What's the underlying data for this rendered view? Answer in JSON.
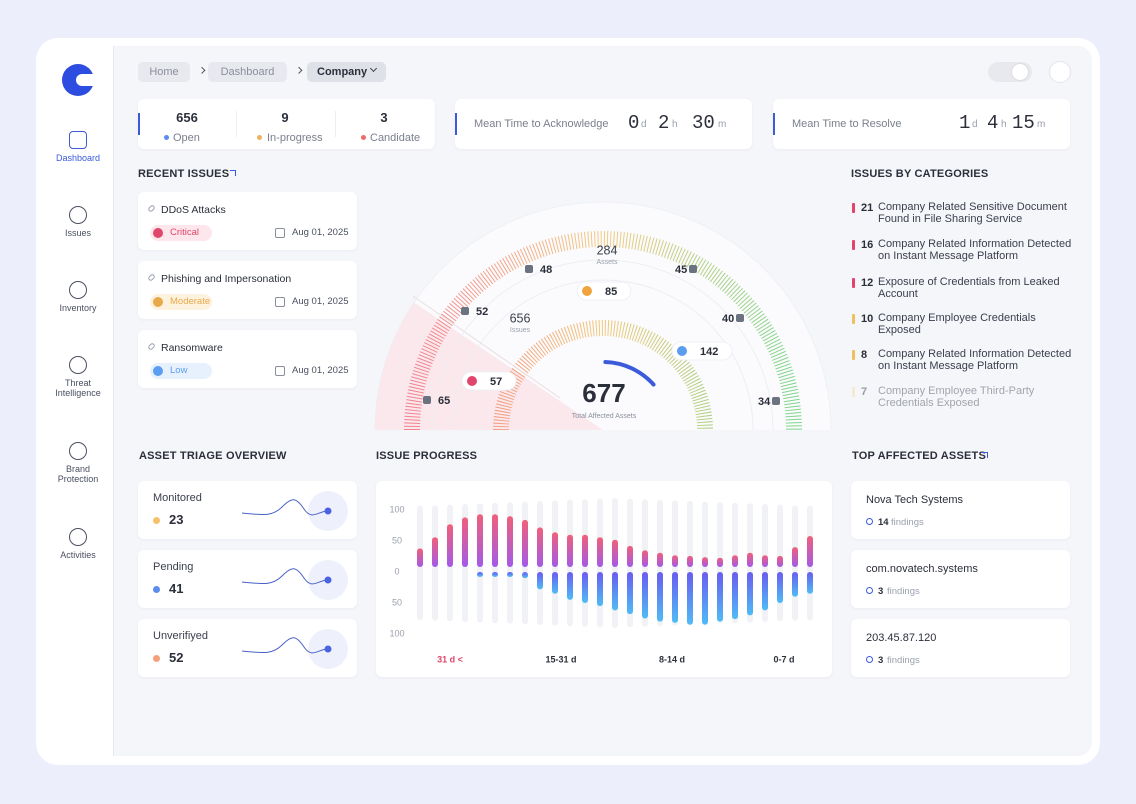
{
  "nav": {
    "items": [
      "Dashboard",
      "Issues",
      "Inventory",
      "Threat Intelligence",
      "Brand Protection",
      "Activities"
    ]
  },
  "breadcrumb": [
    "Home",
    "Dashboard",
    "Company"
  ],
  "status": [
    {
      "value": 656,
      "label": "Open",
      "color": "#5b8def"
    },
    {
      "value": 9,
      "label": "In-progress",
      "color": "#f0b060"
    },
    {
      "value": 3,
      "label": "Candidate",
      "color": "#ef6a6a"
    }
  ],
  "mtta": {
    "label": "Mean Time to Acknowledge",
    "parts": [
      {
        "value": 0,
        "unit": "d"
      },
      {
        "value": 2,
        "unit": "h"
      },
      {
        "value": 30,
        "unit": "m"
      }
    ]
  },
  "mttr": {
    "label": "Mean Time to Resolve",
    "parts": [
      {
        "value": 1,
        "unit": "d"
      },
      {
        "value": 4,
        "unit": "h"
      },
      {
        "value": 15,
        "unit": "m"
      }
    ]
  },
  "recent_issues": {
    "title": "RECENT ISSUES",
    "items": [
      {
        "name": "DDoS Attacks",
        "severity": "Critical",
        "date": "Aug 01, 2025"
      },
      {
        "name": "Phishing and Impersonation",
        "severity": "Moderate",
        "date": "Aug 01, 2025"
      },
      {
        "name": "Ransomware",
        "severity": "Low",
        "date": "Aug 01, 2025"
      }
    ]
  },
  "gauge": {
    "center": {
      "value": 677,
      "label": "Total Affected Assets"
    },
    "rings": [
      {
        "value": 284,
        "label": "Assets"
      },
      {
        "value": 656,
        "label": "Issues"
      }
    ],
    "points": [
      48,
      45,
      52,
      85,
      40,
      142,
      57,
      65,
      34
    ]
  },
  "categories": {
    "title": "ISSUES BY CATEGORIES",
    "items": [
      {
        "count": 21,
        "label": "Company Related Sensitive Document Found in File Sharing Service",
        "color": "#e0456b"
      },
      {
        "count": 16,
        "label": "Company Related Information Detected on Instant Message Platform",
        "color": "#e0456b"
      },
      {
        "count": 12,
        "label": "Exposure of Credentials from Leaked Account",
        "color": "#e0456b"
      },
      {
        "count": 10,
        "label": "Company Employee Credentials Exposed",
        "color": "#f0c060"
      },
      {
        "count": 8,
        "label": "Company Related Information Detected on Instant Message Platform",
        "color": "#f0c060"
      },
      {
        "count": 7,
        "label": "Company Employee Third-Party Credentials Exposed",
        "color": "#f5d9a0"
      }
    ]
  },
  "asset_triage": {
    "title": "ASSET TRIAGE OVERVIEW",
    "items": [
      {
        "label": "Monitored",
        "value": 23,
        "color": "#f5c26b"
      },
      {
        "label": "Pending",
        "value": 41,
        "color": "#5b8def"
      },
      {
        "label": "Unverifiyed",
        "value": 52,
        "color": "#f4a07a"
      }
    ]
  },
  "issue_progress": {
    "title": "ISSUE PROGRESS",
    "ylim": [
      0,
      100
    ],
    "yticks_top": [
      100,
      50,
      0
    ],
    "yticks_bottom": [
      50,
      100
    ],
    "x_labels": [
      "31 d <",
      "15-31 d",
      "8-14 d",
      "0-7 d"
    ],
    "top_values": [
      30,
      48,
      69,
      80,
      85,
      85,
      82,
      76,
      64,
      56,
      52,
      52,
      48,
      44,
      34,
      27,
      23,
      19,
      18,
      16,
      15,
      19,
      23,
      19,
      18,
      32,
      50
    ],
    "bottom_values": [
      null,
      null,
      null,
      null,
      8,
      8,
      8,
      10,
      28,
      35,
      45,
      50,
      55,
      62,
      68,
      75,
      80,
      82,
      85,
      85,
      80,
      76,
      70,
      62,
      50,
      40,
      35
    ]
  },
  "top_assets": {
    "title": "TOP AFFECTED ASSETS",
    "findings_label": "findings",
    "items": [
      {
        "name": "Nova Tech Systems",
        "findings": 14
      },
      {
        "name": "com.novatech.systems",
        "findings": 3
      },
      {
        "name": "203.45.87.120",
        "findings": 3
      }
    ]
  }
}
